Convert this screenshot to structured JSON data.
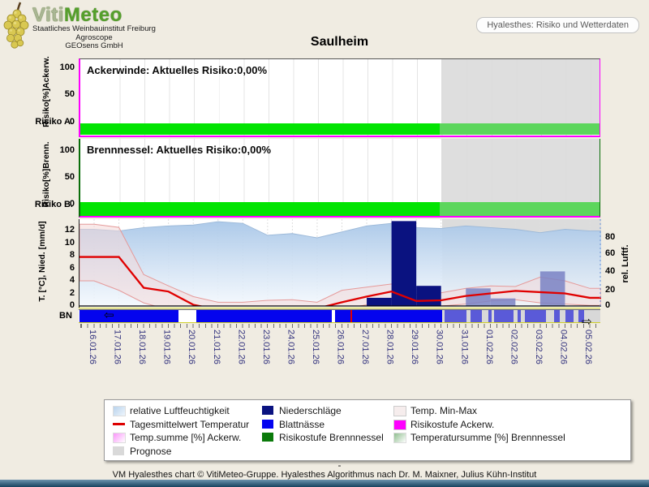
{
  "title": "Saulheim",
  "header": {
    "brand_part1": "Viti",
    "brand_part2": "Meteo",
    "org_lines": [
      "Staatliches Weinbauinstitut Freiburg",
      "Agroscope",
      "GEOsens GmbH"
    ],
    "nav_button": "Hyalesthes: Risiko und Wetterdaten"
  },
  "panels": {
    "ackerwinde": {
      "label": "Ackerwinde: Aktuelles Risiko:0,00%",
      "y_label": "Risiko[%]Ackerw.",
      "y_ticks": [
        "100",
        "50",
        "0"
      ],
      "row_label": "Risiko A.",
      "axis_color": "#ff00ff"
    },
    "brennnessel": {
      "label": "Brennnessel: Aktuelles Risiko:0,00%",
      "y_label": "Risiko[%]Brenn.",
      "y_ticks": [
        "100",
        "50",
        "0"
      ],
      "row_label": "Risiko B.",
      "axis_color": "#0a6e0a"
    },
    "weather": {
      "y_label": "T. [°C], Nied. [mm/d]",
      "y_ticks_left": [
        "12",
        "10",
        "8",
        "6",
        "4",
        "2",
        "0"
      ],
      "y_ticks_right": [
        "80",
        "60",
        "40",
        "20",
        "0"
      ],
      "y_label_right": "rel. Luftf.",
      "bn_label": "BN"
    }
  },
  "chart_data": {
    "type": "composite",
    "x_dates": [
      "16.01.26",
      "17.01.26",
      "18.01.26",
      "19.01.26",
      "20.01.26",
      "21.01.26",
      "22.01.26",
      "23.01.26",
      "24.01.26",
      "25.01.26",
      "26.01.26",
      "27.01.26",
      "28.01.26",
      "29.01.26",
      "30.01.26",
      "31.01.26",
      "01.02.26",
      "02.02.26",
      "03.02.26",
      "04.02.26",
      "05.02.26"
    ],
    "prognosis_start_date": "30.01.26",
    "prognosis_start_frac": 0.695,
    "ylim_left": [
      0,
      13
    ],
    "ylim_right": [
      0,
      100
    ],
    "risk_current": {
      "ackerwinde_percent": 0.0,
      "brennnessel_percent": 0.0
    },
    "series": [
      {
        "name": "relative Luftfeuchtigkeit",
        "type": "area",
        "axis": "right",
        "unit": "%",
        "values": [
          90,
          88,
          92,
          94,
          95,
          99,
          97,
          83,
          85,
          80,
          87,
          94,
          97,
          92,
          91,
          94,
          92,
          90,
          86,
          90,
          88
        ]
      },
      {
        "name": "Tagesmittelwert Temperatur",
        "type": "line",
        "axis": "left",
        "unit": "°C",
        "values": [
          7.8,
          7.8,
          2.9,
          2.3,
          0.2,
          -0.6,
          -0.6,
          -0.4,
          -0.1,
          -0.4,
          0.6,
          1.5,
          2.3,
          0.8,
          0.9,
          1.6,
          2.0,
          2.4,
          2.2,
          2.0,
          1.3
        ]
      },
      {
        "name": "Temp. Min-Max",
        "type": "band",
        "axis": "left",
        "unit": "°C",
        "max": [
          13.0,
          12.5,
          5.0,
          3.2,
          1.5,
          0.6,
          0.6,
          0.9,
          1.0,
          0.6,
          2.5,
          3.0,
          3.5,
          1.8,
          2.1,
          2.8,
          3.2,
          3.1,
          4.6,
          4.0,
          2.8
        ],
        "min": [
          4.0,
          2.5,
          0.5,
          -0.6,
          -1.6,
          -2.0,
          -2.0,
          -2.0,
          -1.0,
          -1.6,
          -0.5,
          0.2,
          1.0,
          0.1,
          0.0,
          0.3,
          0.8,
          1.0,
          0.5,
          0.3,
          0.1
        ]
      },
      {
        "name": "Niederschläge",
        "type": "bar",
        "axis": "left",
        "unit": "mm",
        "values": [
          0,
          0,
          0,
          0,
          0,
          0,
          0,
          0,
          0,
          0,
          0,
          1.3,
          13.5,
          3.2,
          0,
          2.8,
          1.2,
          0,
          5.5,
          0,
          0
        ]
      },
      {
        "name": "Blattnässe",
        "type": "segments",
        "measured_segments": [
          [
            0.002,
            0.191
          ],
          [
            0.226,
            0.485
          ],
          [
            0.492,
            0.697
          ]
        ],
        "prognosis_segments": [
          [
            0.701,
            0.743
          ],
          [
            0.751,
            0.773
          ],
          [
            0.785,
            0.792
          ],
          [
            0.796,
            0.834
          ],
          [
            0.841,
            0.848
          ],
          [
            0.855,
            0.896
          ],
          [
            0.911,
            0.922
          ],
          [
            0.933,
            0.949
          ],
          [
            0.958,
            0.969
          ]
        ],
        "marker_red_frac": 0.521
      }
    ]
  },
  "colors": {
    "risk_bar_measured": "#02e402",
    "risk_bar_prognosis": "#5cd65c",
    "prognosis_bg": "#dcdcdc",
    "humidity_fill_top": "#a9c7e8",
    "humidity_fill_bottom": "#f3f8fd",
    "temp_line": "#e00000",
    "temp_band_fill": "#f4d9d9",
    "precip_measured": "#0a1280",
    "precip_prognosis": "#7a82c4",
    "blattnaesse": "#0404ee",
    "date_text": "#32327e"
  },
  "legend": {
    "columns": [
      [
        {
          "label": "relative Luftfeuchtigkeit",
          "swatch": "gradient",
          "color": "#b9d3ec",
          "color2": "#eef5fc"
        },
        {
          "label": "Tagesmittelwert Temperatur",
          "swatch": "line",
          "color": "#dd0000"
        },
        {
          "label": "Temp.summe [%] Ackerw.",
          "swatch": "gradient",
          "color": "#fa96fa",
          "color2": "#ffffff"
        },
        {
          "label": "Prognose",
          "swatch": "box",
          "color": "#d9d9d9"
        }
      ],
      [
        {
          "label": "Niederschläge",
          "swatch": "box",
          "color": "#0a1280"
        },
        {
          "label": "Blattnässe",
          "swatch": "box",
          "color": "#0404f0"
        },
        {
          "label": "Risikostufe Brennnessel",
          "swatch": "box",
          "color": "#0b7a0b"
        }
      ],
      [
        {
          "label": "Temp. Min-Max",
          "swatch": "box",
          "color": "#f6eded"
        },
        {
          "label": "Risikostufe Ackerw.",
          "swatch": "box",
          "color": "#ff00ff"
        },
        {
          "label": "Temperatursumme [%] Brennnessel",
          "swatch": "gradient",
          "color": "#8fbe8f",
          "color2": "#ffffff"
        }
      ]
    ]
  },
  "footer": {
    "separator": "-",
    "credit": "VM Hyalesthes chart © VitiMeteo-Gruppe. Hyalesthes Algorithmus nach Dr. M. Maixner, Julius Kühn-Institut"
  }
}
